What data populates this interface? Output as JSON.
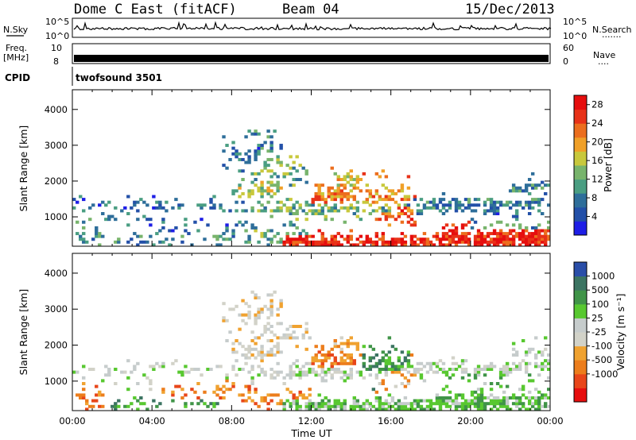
{
  "header": {
    "title": "Dome C East (fitACF)",
    "beam": "Beam 04",
    "date": "15/Dec/2013"
  },
  "top_panels": {
    "nsky_label": "N.Sky",
    "nsky_ticks": [
      "10^5",
      "10^0"
    ],
    "nsearch_label": "N.Search",
    "nsearch_dots": "·······",
    "nsearch_ticks": [
      "10^5",
      "10^0"
    ],
    "freq_label": "Freq.",
    "freq_unit": "[MHz]",
    "freq_ticks": [
      "10",
      "8"
    ],
    "nave_label": "Nave",
    "nave_dots": "····",
    "nave_ticks": [
      "60",
      "0"
    ],
    "cpid_label": "CPID",
    "cpid_value": "twofsound 3501"
  },
  "colors": {
    "power": [
      "#1e1ee6",
      "#2350a8",
      "#2e6e9a",
      "#4a9e82",
      "#78b46c",
      "#c8c83c",
      "#f0a028",
      "#ec6e1e",
      "#e83218",
      "#e60e0e"
    ],
    "velocity": [
      "#e60e0e",
      "#e8461a",
      "#ec7d1c",
      "#f0a230",
      "#d2d2c8",
      "#c6cccc",
      "#58c830",
      "#409448",
      "#3c7462",
      "#2a4ea8"
    ]
  },
  "chart_data": [
    {
      "type": "heatmap",
      "name": "power",
      "xlabel": "",
      "ylabel": "Slant Range [km]",
      "x_ticks": [],
      "y_ticks": [
        "1000",
        "2000",
        "3000",
        "4000"
      ],
      "y_values": [
        1000,
        2000,
        3000,
        4000
      ],
      "xlim": [
        0,
        24
      ],
      "ylim": [
        180,
        4550
      ],
      "colorbar_label": "Power [dB]",
      "colorbar_ticks": [
        "4",
        "8",
        "12",
        "16",
        "20",
        "24",
        "28"
      ],
      "colorbar_range": [
        0,
        30
      ],
      "blobs": [
        [
          0.1,
          1.6,
          450,
          220,
          0.35,
          10
        ],
        [
          0.0,
          5.0,
          1350,
          110,
          0.35,
          6
        ],
        [
          5.0,
          9.5,
          1300,
          120,
          0.3,
          7
        ],
        [
          9.0,
          16.0,
          1250,
          160,
          0.55,
          13
        ],
        [
          12.0,
          14.3,
          1600,
          220,
          0.65,
          22
        ],
        [
          13.0,
          14.6,
          2000,
          200,
          0.45,
          17
        ],
        [
          14.5,
          17.0,
          1500,
          280,
          0.6,
          20
        ],
        [
          15.2,
          17.2,
          1200,
          260,
          0.45,
          24
        ],
        [
          16.5,
          24.0,
          1350,
          120,
          0.55,
          8
        ],
        [
          17.0,
          24.0,
          1200,
          90,
          0.45,
          7
        ],
        [
          18.2,
          24.0,
          400,
          180,
          0.9,
          27
        ],
        [
          10.5,
          18.2,
          300,
          130,
          0.85,
          27
        ],
        [
          8.0,
          10.5,
          1800,
          180,
          0.45,
          15
        ],
        [
          9.0,
          12.0,
          2300,
          250,
          0.35,
          12
        ],
        [
          7.5,
          9.5,
          2800,
          300,
          0.25,
          7
        ],
        [
          8.8,
          10.5,
          3100,
          250,
          0.25,
          9
        ],
        [
          4.5,
          9.0,
          750,
          200,
          0.2,
          6
        ],
        [
          2.0,
          8.0,
          350,
          120,
          0.2,
          9
        ],
        [
          8.5,
          12.0,
          500,
          200,
          0.3,
          11
        ],
        [
          22.0,
          24.0,
          1800,
          160,
          0.4,
          9
        ],
        [
          20.0,
          24.0,
          700,
          160,
          0.25,
          10
        ],
        [
          1.5,
          4.0,
          1000,
          150,
          0.15,
          7
        ]
      ]
    },
    {
      "type": "heatmap",
      "name": "velocity",
      "xlabel": "Time UT",
      "ylabel": "Slant Range [km]",
      "x_ticks": [
        "00:00",
        "04:00",
        "08:00",
        "12:00",
        "16:00",
        "20:00",
        "00:00"
      ],
      "x_values": [
        0,
        4,
        8,
        12,
        16,
        20,
        24
      ],
      "y_ticks": [
        "1000",
        "2000",
        "3000",
        "4000"
      ],
      "y_values": [
        1000,
        2000,
        3000,
        4000
      ],
      "xlim": [
        0,
        24
      ],
      "ylim": [
        180,
        4550
      ],
      "colorbar_label": "Velocity [m s⁻¹]",
      "colorbar_ticks": [
        "1000",
        "500",
        "100",
        "25",
        "-25",
        "-100",
        "-500",
        "-1000"
      ],
      "blobs": [
        [
          0.1,
          1.6,
          450,
          220,
          0.4,
          2
        ],
        [
          0.0,
          5.0,
          1350,
          110,
          0.3,
          5
        ],
        [
          5.0,
          9.5,
          1300,
          120,
          0.3,
          5
        ],
        [
          9.0,
          16.0,
          1250,
          160,
          0.5,
          5
        ],
        [
          12.0,
          14.3,
          1600,
          220,
          0.55,
          2
        ],
        [
          13.0,
          14.6,
          2000,
          200,
          0.4,
          3
        ],
        [
          14.5,
          17.0,
          1500,
          280,
          0.55,
          7
        ],
        [
          15.2,
          17.2,
          1200,
          260,
          0.4,
          3
        ],
        [
          16.5,
          24.0,
          1350,
          120,
          0.55,
          5
        ],
        [
          17.0,
          24.0,
          1200,
          90,
          0.4,
          6
        ],
        [
          18.2,
          24.0,
          400,
          180,
          0.85,
          6
        ],
        [
          10.5,
          18.2,
          300,
          130,
          0.8,
          6
        ],
        [
          8.0,
          10.5,
          1800,
          180,
          0.45,
          4
        ],
        [
          9.0,
          12.0,
          2300,
          250,
          0.35,
          4
        ],
        [
          7.5,
          9.5,
          2800,
          300,
          0.25,
          4
        ],
        [
          8.8,
          10.5,
          3100,
          250,
          0.25,
          4
        ],
        [
          4.5,
          9.0,
          750,
          200,
          0.2,
          2
        ],
        [
          2.0,
          8.0,
          350,
          120,
          0.2,
          7
        ],
        [
          8.5,
          12.0,
          500,
          200,
          0.3,
          2
        ],
        [
          22.0,
          24.0,
          1800,
          160,
          0.4,
          5
        ],
        [
          20.0,
          24.0,
          700,
          160,
          0.25,
          6
        ],
        [
          1.5,
          4.0,
          1000,
          150,
          0.15,
          5
        ]
      ]
    }
  ]
}
